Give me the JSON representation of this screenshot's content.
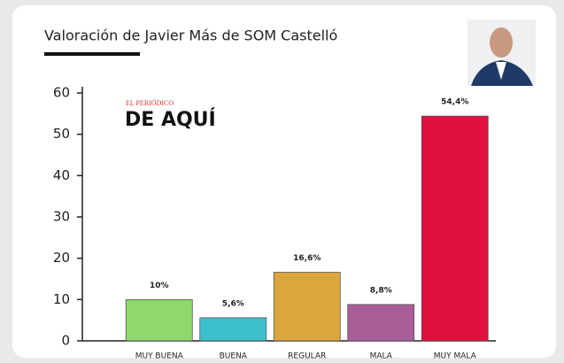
{
  "chart_data": {
    "type": "bar",
    "title": "Valoración de Javier Más de SOM Castelló",
    "logo": {
      "small": "EL PERIÓDICO",
      "main": "DE AQUÍ"
    },
    "categories": [
      "MUY BUENA",
      "BUENA",
      "REGULAR",
      "MALA",
      "MUY MALA"
    ],
    "values": [
      10,
      5.6,
      16.6,
      8.8,
      54.4
    ],
    "value_labels": [
      "10%",
      "5,6%",
      "16,6%",
      "8,8%",
      "54,4%"
    ],
    "colors": [
      "#8ed86c",
      "#3cc0cb",
      "#dca63c",
      "#a95e98",
      "#e0103f"
    ],
    "ylim": [
      0,
      60
    ],
    "yticks": [
      0,
      10,
      20,
      30,
      40,
      50,
      60
    ]
  }
}
